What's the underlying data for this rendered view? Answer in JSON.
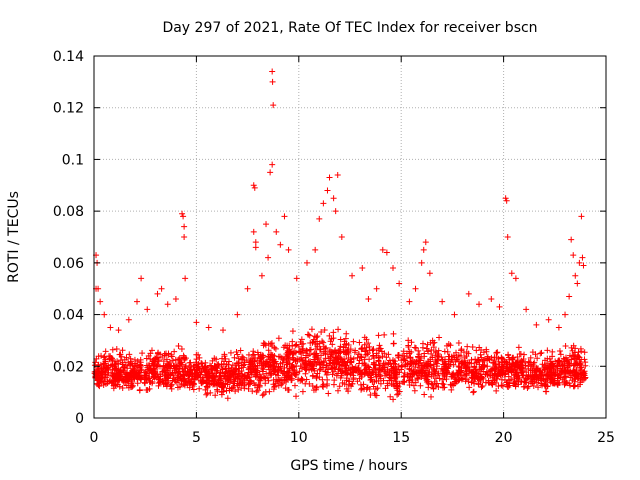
{
  "chart_data": {
    "type": "scatter",
    "title": "Day 297 of 2021, Rate Of TEC Index for receiver bscn",
    "xlabel": "GPS time / hours",
    "ylabel": "ROTI / TECUs",
    "xlim": [
      0,
      25
    ],
    "ylim": [
      0,
      0.14
    ],
    "x_ticks": [
      0,
      5,
      10,
      15,
      20,
      25
    ],
    "x_tick_labels": [
      "0",
      "5",
      "10",
      "15",
      "20",
      "25"
    ],
    "y_ticks": [
      0,
      0.02,
      0.04,
      0.06,
      0.08,
      0.1,
      0.12,
      0.14
    ],
    "y_tick_labels": [
      "0",
      "0.02",
      "0.04",
      "0.06",
      "0.08",
      "0.1",
      "0.12",
      "0.14"
    ],
    "grid": true,
    "marker": "+",
    "series": [
      {
        "name": "ROTI",
        "color": "#ff0000",
        "points": [
          [
            0.1,
            0.05
          ],
          [
            0.1,
            0.063
          ],
          [
            0.15,
            0.06
          ],
          [
            0.2,
            0.05
          ],
          [
            0.3,
            0.045
          ],
          [
            0.5,
            0.04
          ],
          [
            0.8,
            0.035
          ],
          [
            1.2,
            0.034
          ],
          [
            1.7,
            0.038
          ],
          [
            2.1,
            0.045
          ],
          [
            2.3,
            0.054
          ],
          [
            2.6,
            0.042
          ],
          [
            3.1,
            0.048
          ],
          [
            3.3,
            0.05
          ],
          [
            3.6,
            0.044
          ],
          [
            4.0,
            0.046
          ],
          [
            4.3,
            0.079
          ],
          [
            4.35,
            0.078
          ],
          [
            4.4,
            0.074
          ],
          [
            4.4,
            0.07
          ],
          [
            4.45,
            0.054
          ],
          [
            5.0,
            0.037
          ],
          [
            5.6,
            0.035
          ],
          [
            6.3,
            0.034
          ],
          [
            7.0,
            0.04
          ],
          [
            7.5,
            0.05
          ],
          [
            7.8,
            0.09
          ],
          [
            7.85,
            0.089
          ],
          [
            7.8,
            0.072
          ],
          [
            7.9,
            0.068
          ],
          [
            7.9,
            0.066
          ],
          [
            8.2,
            0.055
          ],
          [
            8.4,
            0.075
          ],
          [
            8.5,
            0.062
          ],
          [
            8.6,
            0.095
          ],
          [
            8.7,
            0.098
          ],
          [
            8.7,
            0.134
          ],
          [
            8.72,
            0.13
          ],
          [
            8.75,
            0.121
          ],
          [
            8.9,
            0.072
          ],
          [
            9.1,
            0.067
          ],
          [
            9.3,
            0.078
          ],
          [
            9.5,
            0.065
          ],
          [
            9.9,
            0.054
          ],
          [
            10.4,
            0.06
          ],
          [
            10.8,
            0.065
          ],
          [
            11.0,
            0.077
          ],
          [
            11.2,
            0.083
          ],
          [
            11.4,
            0.088
          ],
          [
            11.5,
            0.093
          ],
          [
            11.7,
            0.085
          ],
          [
            11.8,
            0.08
          ],
          [
            11.9,
            0.094
          ],
          [
            12.1,
            0.07
          ],
          [
            12.6,
            0.055
          ],
          [
            13.1,
            0.058
          ],
          [
            13.4,
            0.046
          ],
          [
            13.8,
            0.05
          ],
          [
            14.1,
            0.065
          ],
          [
            14.3,
            0.064
          ],
          [
            14.6,
            0.058
          ],
          [
            14.9,
            0.052
          ],
          [
            15.4,
            0.045
          ],
          [
            15.7,
            0.05
          ],
          [
            16.0,
            0.06
          ],
          [
            16.1,
            0.065
          ],
          [
            16.2,
            0.068
          ],
          [
            16.4,
            0.056
          ],
          [
            17.0,
            0.045
          ],
          [
            17.6,
            0.04
          ],
          [
            18.3,
            0.048
          ],
          [
            18.8,
            0.044
          ],
          [
            19.4,
            0.046
          ],
          [
            19.8,
            0.043
          ],
          [
            20.1,
            0.085
          ],
          [
            20.15,
            0.084
          ],
          [
            20.2,
            0.07
          ],
          [
            20.4,
            0.056
          ],
          [
            20.6,
            0.054
          ],
          [
            21.1,
            0.042
          ],
          [
            21.6,
            0.036
          ],
          [
            22.2,
            0.038
          ],
          [
            22.7,
            0.035
          ],
          [
            23.0,
            0.04
          ],
          [
            23.2,
            0.047
          ],
          [
            23.3,
            0.069
          ],
          [
            23.4,
            0.063
          ],
          [
            23.5,
            0.055
          ],
          [
            23.6,
            0.052
          ],
          [
            23.7,
            0.06
          ],
          [
            23.8,
            0.078
          ],
          [
            23.85,
            0.062
          ],
          [
            23.9,
            0.059
          ]
        ],
        "envelope": {
          "x": [
            0,
            0.5,
            1.0,
            1.5,
            2.0,
            2.5,
            3.0,
            3.5,
            4.0,
            4.5,
            5.0,
            5.5,
            6.0,
            6.5,
            7.0,
            7.5,
            8.0,
            8.5,
            9.0,
            9.5,
            10.0,
            10.5,
            11.0,
            11.5,
            12.0,
            12.5,
            13.0,
            13.5,
            14.0,
            14.5,
            15.0,
            15.5,
            16.0,
            16.5,
            17.0,
            17.5,
            18.0,
            18.5,
            19.0,
            19.5,
            20.0,
            20.5,
            21.0,
            21.5,
            22.0,
            22.5,
            23.0,
            23.5,
            24.0
          ],
          "low": [
            0.011,
            0.01,
            0.009,
            0.009,
            0.009,
            0.008,
            0.009,
            0.009,
            0.009,
            0.008,
            0.008,
            0.007,
            0.006,
            0.006,
            0.007,
            0.007,
            0.008,
            0.008,
            0.008,
            0.007,
            0.007,
            0.008,
            0.007,
            0.007,
            0.006,
            0.007,
            0.006,
            0.006,
            0.006,
            0.005,
            0.005,
            0.006,
            0.006,
            0.007,
            0.007,
            0.008,
            0.008,
            0.008,
            0.009,
            0.009,
            0.009,
            0.009,
            0.009,
            0.009,
            0.009,
            0.009,
            0.009,
            0.008,
            0.01
          ],
          "high": [
            0.028,
            0.03,
            0.028,
            0.027,
            0.028,
            0.03,
            0.031,
            0.03,
            0.03,
            0.028,
            0.027,
            0.026,
            0.026,
            0.027,
            0.028,
            0.03,
            0.032,
            0.034,
            0.034,
            0.035,
            0.036,
            0.038,
            0.04,
            0.041,
            0.038,
            0.036,
            0.036,
            0.034,
            0.035,
            0.036,
            0.035,
            0.034,
            0.036,
            0.035,
            0.032,
            0.031,
            0.03,
            0.031,
            0.031,
            0.031,
            0.03,
            0.03,
            0.029,
            0.029,
            0.029,
            0.03,
            0.031,
            0.033,
            0.03
          ],
          "center": [
            0.017,
            0.018,
            0.017,
            0.017,
            0.017,
            0.018,
            0.018,
            0.018,
            0.018,
            0.017,
            0.017,
            0.016,
            0.016,
            0.016,
            0.017,
            0.018,
            0.019,
            0.02,
            0.02,
            0.02,
            0.021,
            0.022,
            0.022,
            0.022,
            0.021,
            0.02,
            0.02,
            0.019,
            0.019,
            0.019,
            0.019,
            0.019,
            0.02,
            0.019,
            0.018,
            0.018,
            0.018,
            0.018,
            0.018,
            0.018,
            0.018,
            0.018,
            0.018,
            0.017,
            0.017,
            0.018,
            0.018,
            0.019,
            0.018
          ],
          "x_end": 24
        }
      }
    ]
  }
}
